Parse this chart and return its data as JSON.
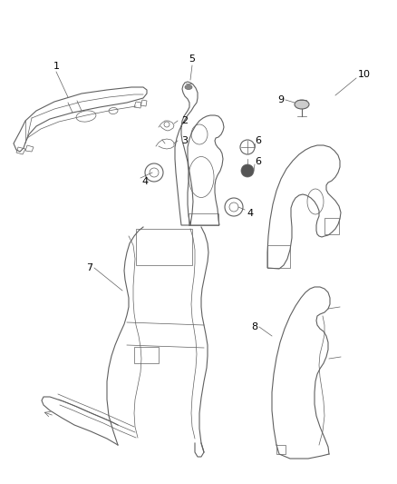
{
  "background_color": "#ffffff",
  "line_color": "#606060",
  "label_color": "#000000",
  "figsize": [
    4.38,
    5.33
  ],
  "dpi": 100
}
